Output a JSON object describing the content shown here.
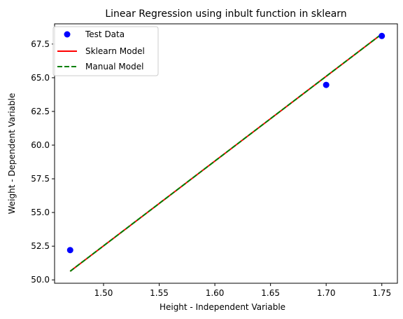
{
  "chart_data": {
    "type": "scatter",
    "title": "Linear Regression using inbult function in sklearn",
    "xlabel": "Height - Independent Variable",
    "ylabel": "Weight - Dependent Variable",
    "xlim": [
      1.456,
      1.764
    ],
    "ylim": [
      49.75,
      69.0
    ],
    "xticks": [
      1.5,
      1.55,
      1.6,
      1.65,
      1.7,
      1.75
    ],
    "xtick_labels": [
      "1.50",
      "1.55",
      "1.60",
      "1.65",
      "1.70",
      "1.75"
    ],
    "yticks": [
      50.0,
      52.5,
      55.0,
      57.5,
      60.0,
      62.5,
      65.0,
      67.5
    ],
    "ytick_labels": [
      "50.0",
      "52.5",
      "55.0",
      "57.5",
      "60.0",
      "62.5",
      "65.0",
      "67.5"
    ],
    "grid": false,
    "legend_position": "upper-left",
    "series": [
      {
        "name": "Test Data",
        "kind": "scatter",
        "color": "#0000ff",
        "x": [
          1.47,
          1.7,
          1.75
        ],
        "y": [
          52.21,
          64.47,
          68.1
        ]
      },
      {
        "name": "Sklearn Model",
        "kind": "line",
        "style": "solid",
        "color": "#ff0000",
        "x": [
          1.47,
          1.75
        ],
        "y": [
          50.64,
          68.25
        ]
      },
      {
        "name": "Manual Model",
        "kind": "line",
        "style": "dashed",
        "color": "#008000",
        "x": [
          1.47,
          1.75
        ],
        "y": [
          50.64,
          68.25
        ]
      }
    ]
  }
}
